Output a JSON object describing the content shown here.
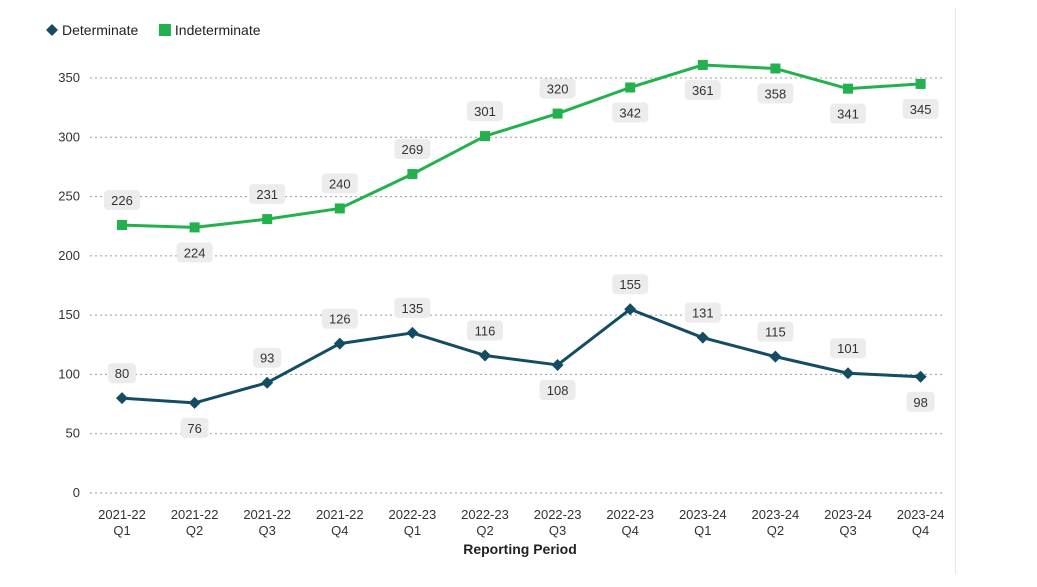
{
  "chart_data": {
    "type": "line",
    "categories": [
      [
        "2021-22",
        "Q1"
      ],
      [
        "2021-22",
        "Q2"
      ],
      [
        "2021-22",
        "Q3"
      ],
      [
        "2021-22",
        "Q4"
      ],
      [
        "2022-23",
        "Q1"
      ],
      [
        "2022-23",
        "Q2"
      ],
      [
        "2022-23",
        "Q3"
      ],
      [
        "2022-23",
        "Q4"
      ],
      [
        "2023-24",
        "Q1"
      ],
      [
        "2023-24",
        "Q2"
      ],
      [
        "2023-24",
        "Q3"
      ],
      [
        "2023-24",
        "Q4"
      ]
    ],
    "series": [
      {
        "name": "Determinate",
        "color": "#144d63",
        "marker": "diamond",
        "values": [
          80,
          76,
          93,
          126,
          135,
          116,
          108,
          155,
          131,
          115,
          101,
          98
        ],
        "label_position": [
          "above",
          "below",
          "above",
          "above",
          "above",
          "above",
          "below",
          "above",
          "above",
          "above",
          "above",
          "below"
        ]
      },
      {
        "name": "Indeterminate",
        "color": "#22b14c",
        "marker": "square",
        "values": [
          226,
          224,
          231,
          240,
          269,
          301,
          320,
          342,
          361,
          358,
          341,
          345
        ],
        "label_position": [
          "above",
          "below",
          "above",
          "above",
          "above",
          "above",
          "above",
          "below",
          "below",
          "below",
          "below",
          "below"
        ]
      }
    ],
    "xlabel": "Reporting Period",
    "ylabel": "",
    "ylim": [
      0,
      350
    ],
    "yticks": [
      0,
      50,
      100,
      150,
      200,
      250,
      300,
      350
    ],
    "grid": true,
    "legend": "top-left"
  }
}
